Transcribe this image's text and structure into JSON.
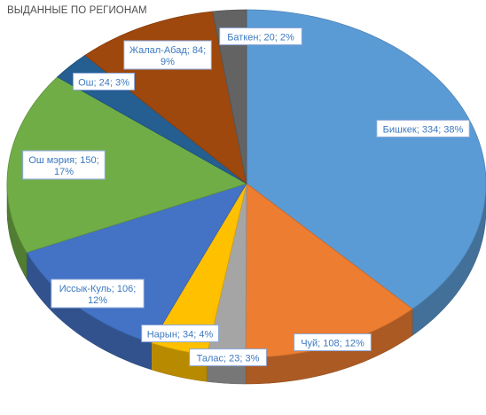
{
  "chart_data": {
    "type": "pie",
    "title": "ВЫДАННЫЕ ПО РЕГИОНАМ",
    "slices": [
      {
        "name": "Бишкек",
        "value": 334,
        "percent": "38%",
        "color": "#5b9bd5",
        "label_lines": [
          "Бишкек; 334; 38%"
        ]
      },
      {
        "name": "Чуй",
        "value": 108,
        "percent": "12%",
        "color": "#ed7d31",
        "label_lines": [
          "Чуй; 108; 12%"
        ]
      },
      {
        "name": "Талас",
        "value": 23,
        "percent": "3%",
        "color": "#a5a5a5",
        "label_lines": [
          "Талас; 23; 3%"
        ]
      },
      {
        "name": "Нарын",
        "value": 34,
        "percent": "4%",
        "color": "#ffc000",
        "label_lines": [
          "Нарын; 34; 4%"
        ]
      },
      {
        "name": "Иссык-Куль",
        "value": 106,
        "percent": "12%",
        "color": "#4472c4",
        "label_lines": [
          "Иссык-Куль; 106;",
          "12%"
        ]
      },
      {
        "name": "Ош мэрия",
        "value": 150,
        "percent": "17%",
        "color": "#70ad47",
        "label_lines": [
          "Ош мэрия; 150;",
          "17%"
        ]
      },
      {
        "name": "Ош",
        "value": 24,
        "percent": "3%",
        "color": "#255e91",
        "label_lines": [
          "Ош; 24; 3%"
        ]
      },
      {
        "name": "Жалал-Абад",
        "value": 84,
        "percent": "9%",
        "color": "#9e480e",
        "label_lines": [
          "Жалал-Абад; 84;",
          "9%"
        ]
      },
      {
        "name": "Баткен",
        "value": 20,
        "percent": "2%",
        "color": "#636363",
        "label_lines": [
          "Баткен; 20; 2%"
        ]
      }
    ]
  }
}
